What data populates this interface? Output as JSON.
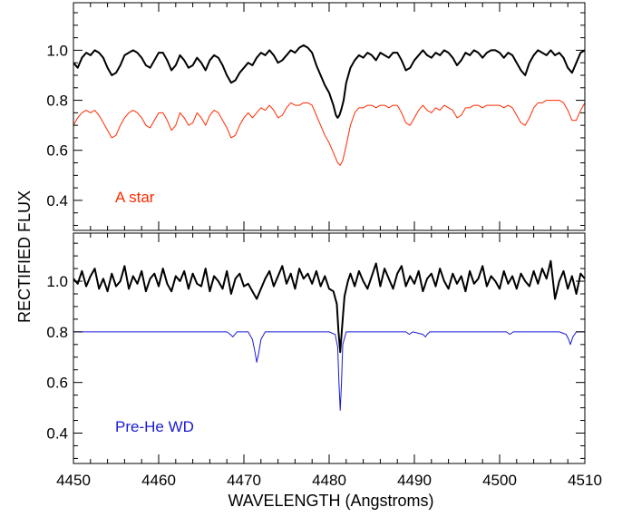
{
  "chart_data": {
    "type": "line",
    "xlabel": "WAVELENGTH (Angstroms)",
    "ylabel": "RECTIFIED FLUX",
    "xlim": [
      4450,
      4510
    ],
    "x_ticks": [
      4450,
      4460,
      4470,
      4480,
      4490,
      4500,
      4510
    ],
    "x_tick_labels": [
      "4450",
      "4460",
      "4470",
      "4480",
      "4490",
      "4500",
      "4510"
    ],
    "panels": [
      {
        "ylim": [
          0.28,
          1.19
        ],
        "y_ticks": [
          0.4,
          0.6,
          0.8,
          1.0
        ],
        "y_tick_labels": [
          "0.4",
          "0.6",
          "0.8",
          "1.0"
        ],
        "annotation": "A star",
        "annotation_color": "#ff2a00",
        "series": [
          {
            "color": "#000000",
            "x": [
              4450.0,
              4450.5,
              4451.0,
              4451.5,
              4452.0,
              4452.5,
              4453.0,
              4453.5,
              4454.0,
              4454.5,
              4455.0,
              4455.5,
              4456.0,
              4456.5,
              4457.0,
              4457.5,
              4458.0,
              4458.5,
              4459.0,
              4459.5,
              4460.0,
              4460.5,
              4461.0,
              4461.5,
              4462.0,
              4462.5,
              4463.0,
              4463.5,
              4464.0,
              4464.5,
              4465.0,
              4465.5,
              4466.0,
              4466.5,
              4467.0,
              4467.5,
              4468.0,
              4468.5,
              4469.0,
              4469.5,
              4470.0,
              4470.5,
              4471.0,
              4471.5,
              4472.0,
              4472.5,
              4473.0,
              4473.5,
              4474.0,
              4474.5,
              4475.0,
              4475.5,
              4476.0,
              4476.5,
              4477.0,
              4477.5,
              4478.0,
              4478.5,
              4479.0,
              4479.5,
              4480.0,
              4480.5,
              4480.8,
              4481.0,
              4481.2,
              4481.4,
              4481.7,
              4482.0,
              4482.5,
              4483.0,
              4483.5,
              4484.0,
              4484.5,
              4485.0,
              4485.5,
              4486.0,
              4486.5,
              4487.0,
              4487.5,
              4488.0,
              4488.5,
              4489.0,
              4489.5,
              4490.0,
              4490.5,
              4491.0,
              4491.5,
              4492.0,
              4492.5,
              4493.0,
              4493.5,
              4494.0,
              4494.5,
              4495.0,
              4495.5,
              4496.0,
              4496.5,
              4497.0,
              4497.5,
              4498.0,
              4498.5,
              4499.0,
              4499.5,
              4500.0,
              4500.5,
              4501.0,
              4501.5,
              4502.0,
              4502.5,
              4503.0,
              4503.5,
              4504.0,
              4504.5,
              4505.0,
              4505.5,
              4506.0,
              4506.5,
              4507.0,
              4507.5,
              4508.0,
              4508.5,
              4509.0,
              4509.5,
              4510.0
            ],
            "y": [
              0.95,
              0.93,
              0.97,
              0.99,
              0.98,
              1.0,
              0.99,
              0.97,
              0.93,
              0.9,
              0.91,
              0.94,
              0.98,
              0.99,
              1.0,
              0.99,
              0.97,
              0.94,
              0.93,
              0.96,
              0.99,
              0.99,
              0.96,
              0.92,
              0.94,
              0.98,
              0.96,
              0.93,
              0.94,
              0.97,
              0.95,
              0.92,
              0.96,
              0.98,
              0.97,
              0.94,
              0.9,
              0.87,
              0.88,
              0.91,
              0.93,
              0.95,
              0.94,
              0.97,
              0.99,
              0.98,
              1.0,
              0.98,
              0.95,
              0.96,
              0.98,
              1.0,
              0.99,
              1.01,
              1.02,
              1.01,
              0.99,
              0.94,
              0.9,
              0.86,
              0.83,
              0.78,
              0.74,
              0.73,
              0.74,
              0.76,
              0.8,
              0.87,
              0.93,
              0.96,
              0.98,
              0.97,
              0.99,
              0.98,
              0.96,
              0.99,
              0.98,
              0.97,
              0.99,
              0.99,
              0.96,
              0.92,
              0.93,
              0.96,
              0.98,
              1.0,
              0.98,
              0.97,
              0.99,
              0.98,
              1.0,
              0.99,
              0.97,
              0.94,
              0.96,
              0.99,
              0.98,
              1.0,
              0.99,
              0.97,
              0.99,
              1.0,
              1.0,
              0.99,
              0.97,
              0.99,
              0.98,
              0.95,
              0.92,
              0.9,
              0.95,
              0.98,
              1.0,
              0.99,
              0.98,
              1.0,
              0.98,
              0.99,
              0.97,
              0.93,
              0.91,
              0.95,
              0.99,
              1.0
            ]
          },
          {
            "color": "#ff2a00",
            "x": [
              4450.0,
              4450.5,
              4451.0,
              4451.5,
              4452.0,
              4452.5,
              4453.0,
              4453.5,
              4454.0,
              4454.5,
              4455.0,
              4455.5,
              4456.0,
              4456.5,
              4457.0,
              4457.5,
              4458.0,
              4458.5,
              4459.0,
              4459.5,
              4460.0,
              4460.5,
              4461.0,
              4461.5,
              4462.0,
              4462.5,
              4463.0,
              4463.5,
              4464.0,
              4464.5,
              4465.0,
              4465.5,
              4466.0,
              4466.5,
              4467.0,
              4467.5,
              4468.0,
              4468.5,
              4469.0,
              4469.5,
              4470.0,
              4470.5,
              4471.0,
              4471.5,
              4472.0,
              4472.5,
              4473.0,
              4473.5,
              4474.0,
              4474.5,
              4475.0,
              4475.5,
              4476.0,
              4476.5,
              4477.0,
              4477.5,
              4478.0,
              4478.5,
              4479.0,
              4479.5,
              4480.0,
              4480.5,
              4481.0,
              4481.3,
              4481.6,
              4482.0,
              4482.5,
              4483.0,
              4483.5,
              4484.0,
              4484.5,
              4485.0,
              4485.5,
              4486.0,
              4486.5,
              4487.0,
              4487.5,
              4488.0,
              4488.5,
              4489.0,
              4489.5,
              4490.0,
              4490.5,
              4491.0,
              4491.5,
              4492.0,
              4492.5,
              4493.0,
              4493.5,
              4494.0,
              4494.5,
              4495.0,
              4495.5,
              4496.0,
              4496.5,
              4497.0,
              4497.5,
              4498.0,
              4498.5,
              4499.0,
              4499.5,
              4500.0,
              4500.5,
              4501.0,
              4501.5,
              4502.0,
              4502.5,
              4503.0,
              4503.5,
              4504.0,
              4504.5,
              4505.0,
              4505.5,
              4506.0,
              4506.5,
              4507.0,
              4507.5,
              4508.0,
              4508.5,
              4509.0,
              4509.5,
              4510.0
            ],
            "y": [
              0.7,
              0.73,
              0.75,
              0.76,
              0.75,
              0.76,
              0.74,
              0.71,
              0.68,
              0.65,
              0.66,
              0.7,
              0.73,
              0.75,
              0.76,
              0.75,
              0.73,
              0.7,
              0.69,
              0.72,
              0.75,
              0.75,
              0.72,
              0.68,
              0.7,
              0.75,
              0.73,
              0.7,
              0.71,
              0.75,
              0.73,
              0.7,
              0.74,
              0.76,
              0.75,
              0.72,
              0.69,
              0.65,
              0.66,
              0.7,
              0.73,
              0.75,
              0.73,
              0.75,
              0.77,
              0.76,
              0.78,
              0.76,
              0.73,
              0.74,
              0.77,
              0.79,
              0.78,
              0.78,
              0.79,
              0.79,
              0.78,
              0.74,
              0.7,
              0.66,
              0.63,
              0.59,
              0.55,
              0.54,
              0.56,
              0.62,
              0.7,
              0.75,
              0.77,
              0.77,
              0.78,
              0.78,
              0.77,
              0.78,
              0.78,
              0.77,
              0.78,
              0.78,
              0.75,
              0.71,
              0.7,
              0.73,
              0.76,
              0.78,
              0.76,
              0.75,
              0.77,
              0.76,
              0.78,
              0.77,
              0.76,
              0.73,
              0.74,
              0.77,
              0.77,
              0.78,
              0.78,
              0.77,
              0.78,
              0.78,
              0.78,
              0.78,
              0.77,
              0.78,
              0.77,
              0.74,
              0.71,
              0.7,
              0.73,
              0.77,
              0.79,
              0.79,
              0.8,
              0.8,
              0.8,
              0.8,
              0.79,
              0.76,
              0.72,
              0.72,
              0.76,
              0.79
            ]
          }
        ]
      },
      {
        "ylim": [
          0.28,
          1.19
        ],
        "y_ticks": [
          0.4,
          0.6,
          0.8,
          1.0
        ],
        "y_tick_labels": [
          "0.4",
          "0.6",
          "0.8",
          "1.0"
        ],
        "annotation": "Pre-He WD",
        "annotation_color": "#1a1ad6",
        "series": [
          {
            "color": "#000000",
            "x": [
              4450.0,
              4450.5,
              4451.0,
              4451.5,
              4452.0,
              4452.5,
              4453.0,
              4453.5,
              4454.0,
              4454.5,
              4455.0,
              4455.5,
              4456.0,
              4456.5,
              4457.0,
              4457.5,
              4458.0,
              4458.5,
              4459.0,
              4459.5,
              4460.0,
              4460.5,
              4461.0,
              4461.5,
              4462.0,
              4462.5,
              4463.0,
              4463.5,
              4464.0,
              4464.5,
              4465.0,
              4465.5,
              4466.0,
              4466.5,
              4467.0,
              4467.5,
              4468.0,
              4468.5,
              4469.0,
              4469.5,
              4470.0,
              4470.5,
              4471.0,
              4471.5,
              4472.0,
              4472.5,
              4473.0,
              4473.5,
              4474.0,
              4474.5,
              4475.0,
              4475.5,
              4476.0,
              4476.5,
              4477.0,
              4477.5,
              4478.0,
              4478.5,
              4479.0,
              4479.5,
              4480.0,
              4480.5,
              4480.9,
              4481.1,
              4481.3,
              4481.5,
              4481.8,
              4482.2,
              4482.5,
              4483.0,
              4483.5,
              4484.0,
              4484.5,
              4485.0,
              4485.5,
              4486.0,
              4486.5,
              4487.0,
              4487.5,
              4488.0,
              4488.5,
              4489.0,
              4489.5,
              4490.0,
              4490.5,
              4491.0,
              4491.5,
              4492.0,
              4492.5,
              4493.0,
              4493.5,
              4494.0,
              4494.5,
              4495.0,
              4495.5,
              4496.0,
              4496.5,
              4497.0,
              4497.5,
              4498.0,
              4498.5,
              4499.0,
              4499.5,
              4500.0,
              4500.5,
              4501.0,
              4501.5,
              4502.0,
              4502.5,
              4503.0,
              4503.5,
              4504.0,
              4504.5,
              4505.0,
              4505.5,
              4506.0,
              4506.5,
              4507.0,
              4507.5,
              4508.0,
              4508.5,
              4509.0,
              4509.5,
              4510.0
            ],
            "y": [
              1.01,
              0.99,
              1.04,
              0.98,
              1.02,
              1.05,
              0.97,
              1.01,
              0.96,
              1.03,
              0.98,
              1.0,
              1.06,
              0.97,
              1.02,
              0.99,
              1.04,
              0.96,
              1.01,
              1.03,
              0.98,
              1.05,
              0.99,
              0.96,
              1.02,
              1.0,
              1.04,
              0.97,
              1.03,
              0.99,
              0.98,
              1.05,
              0.96,
              1.02,
              1.0,
              0.97,
              1.04,
              0.95,
              1.01,
              1.03,
              0.98,
              0.99,
              0.96,
              0.93,
              0.97,
              1.01,
              1.04,
              0.98,
              1.02,
              1.06,
              0.99,
              1.03,
              0.97,
              1.05,
              1.01,
              1.03,
              0.99,
              1.04,
              0.98,
              1.02,
              0.97,
              0.96,
              0.91,
              0.8,
              0.72,
              0.81,
              0.94,
              1.0,
              1.03,
              0.98,
              1.04,
              1.0,
              0.97,
              1.02,
              1.07,
              0.98,
              1.05,
              1.01,
              0.97,
              1.03,
              1.06,
              0.98,
              1.02,
              0.99,
              1.04,
              0.96,
              1.01,
              1.03,
              0.98,
              1.05,
              1.0,
              0.97,
              1.03,
              0.99,
              1.02,
              0.96,
              1.04,
              0.99,
              1.01,
              1.06,
              0.98,
              1.02,
              1.0,
              0.97,
              1.04,
              0.99,
              1.02,
              0.97,
              1.03,
              1.0,
              0.98,
              1.04,
              0.99,
              1.05,
              1.01,
              1.08,
              0.93,
              1.0,
              1.04,
              0.97,
              1.02,
              0.95,
              1.03,
              1.01
            ]
          },
          {
            "color": "#1a1ad6",
            "x": [
              4450.0,
              4452.0,
              4454.0,
              4456.0,
              4458.0,
              4460.0,
              4462.0,
              4464.0,
              4466.0,
              4468.0,
              4468.4,
              4468.7,
              4469.2,
              4470.5,
              4471.0,
              4471.3,
              4471.5,
              4471.7,
              4472.0,
              4472.5,
              4474.0,
              4476.0,
              4478.0,
              4480.0,
              4480.7,
              4481.0,
              4481.15,
              4481.3,
              4481.45,
              4481.6,
              4482.0,
              4483.0,
              4485.0,
              4487.0,
              4489.0,
              4489.4,
              4489.8,
              4491.0,
              4491.3,
              4491.5,
              4491.8,
              4493.0,
              4495.0,
              4497.0,
              4499.0,
              4500.8,
              4501.2,
              4501.6,
              4503.0,
              4505.0,
              4507.0,
              4507.8,
              4508.1,
              4508.3,
              4508.6,
              4509.0,
              4510.0
            ],
            "y": [
              0.8,
              0.8,
              0.8,
              0.8,
              0.8,
              0.8,
              0.8,
              0.8,
              0.8,
              0.8,
              0.79,
              0.78,
              0.8,
              0.8,
              0.77,
              0.72,
              0.68,
              0.71,
              0.77,
              0.8,
              0.8,
              0.8,
              0.8,
              0.8,
              0.79,
              0.74,
              0.6,
              0.49,
              0.6,
              0.75,
              0.8,
              0.8,
              0.8,
              0.8,
              0.8,
              0.79,
              0.8,
              0.79,
              0.78,
              0.79,
              0.8,
              0.8,
              0.8,
              0.8,
              0.8,
              0.8,
              0.79,
              0.8,
              0.8,
              0.8,
              0.8,
              0.79,
              0.77,
              0.75,
              0.78,
              0.8,
              0.8
            ]
          }
        ]
      }
    ]
  }
}
